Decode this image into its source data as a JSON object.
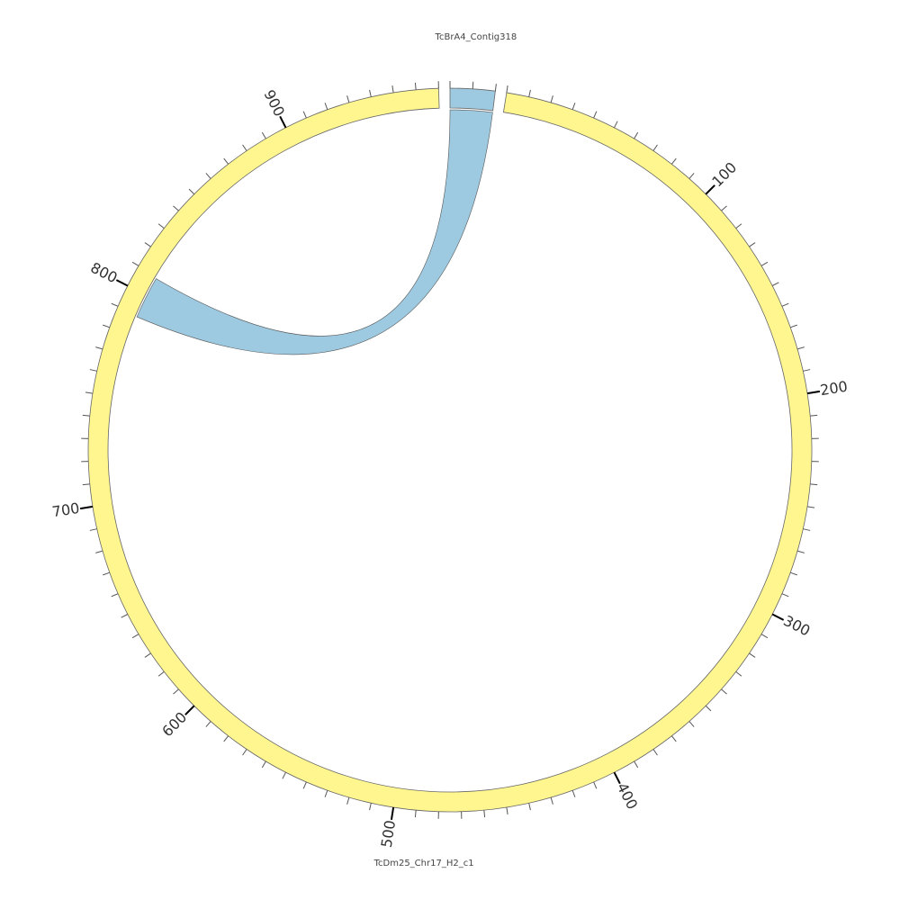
{
  "chart_data": {
    "type": "circos",
    "minor_tick_spacing": 10,
    "ideograms": [
      {
        "name": "TcBrA4_Contig318",
        "length": 20,
        "color": "#9ecae1",
        "ticks": []
      },
      {
        "name": "TcDm25_Chr17_H2_c1",
        "length": 970,
        "color": "#fff68f",
        "ticks": [
          100,
          200,
          300,
          400,
          500,
          600,
          700,
          800,
          900
        ]
      }
    ],
    "links": [
      {
        "color": "#9ecae1",
        "source": {
          "ideogram": 0,
          "start": 0,
          "end": 20
        },
        "target": {
          "ideogram": 1,
          "start": 789,
          "end": 809
        }
      }
    ]
  }
}
